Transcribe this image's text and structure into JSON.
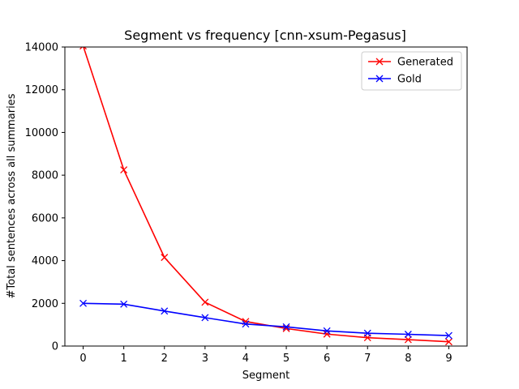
{
  "chart_data": {
    "type": "line",
    "title": "Segment vs frequency [cnn-xsum-Pegasus]",
    "xlabel": "Segment",
    "ylabel": "#Total sentences across all summaries",
    "x": [
      0,
      1,
      2,
      3,
      4,
      5,
      6,
      7,
      8,
      9
    ],
    "xlim": [
      -0.45,
      9.45
    ],
    "ylim": [
      0,
      14000
    ],
    "xticks": [
      "0",
      "1",
      "2",
      "3",
      "4",
      "5",
      "6",
      "7",
      "8",
      "9"
    ],
    "yticks": [
      "0",
      "2000",
      "4000",
      "6000",
      "8000",
      "10000",
      "12000",
      "14000"
    ],
    "grid": false,
    "legend_position": "top-right",
    "series": [
      {
        "name": "Generated",
        "color": "#ff0000",
        "marker": "x",
        "values": [
          14050,
          8250,
          4150,
          2050,
          1150,
          820,
          560,
          390,
          300,
          200
        ]
      },
      {
        "name": "Gold",
        "color": "#0000ff",
        "marker": "x",
        "values": [
          2000,
          1960,
          1640,
          1330,
          1030,
          900,
          710,
          600,
          550,
          490
        ]
      }
    ]
  }
}
